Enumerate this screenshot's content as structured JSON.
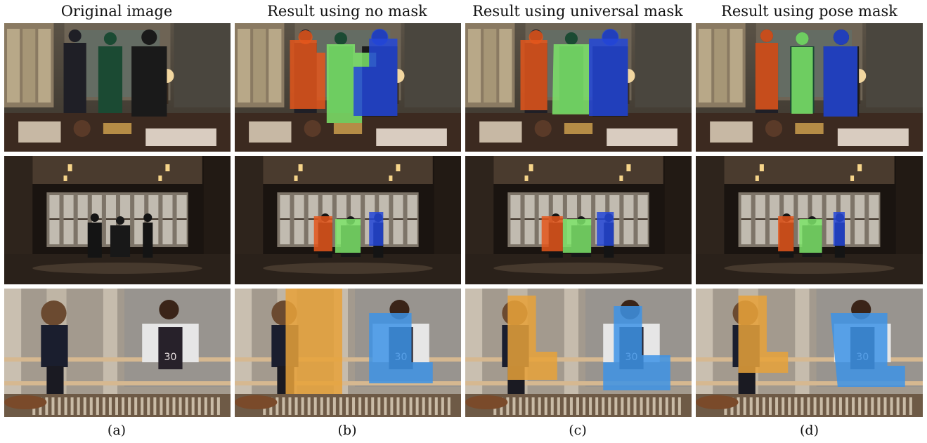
{
  "figure": {
    "columns": [
      {
        "title": "Original image",
        "label": "(a)",
        "mask": "none"
      },
      {
        "title": "Result using no mask",
        "label": "(b)",
        "mask": "box"
      },
      {
        "title": "Result using universal mask",
        "label": "(c)",
        "mask": "universal"
      },
      {
        "title": "Result using pose mask",
        "label": "(d)",
        "mask": "pose"
      }
    ],
    "rows": [
      {
        "scene": "office-three-people",
        "jersey_number": ""
      },
      {
        "scene": "hall-three-people",
        "jersey_number": ""
      },
      {
        "scene": "railing-two-people",
        "jersey_number": "30"
      }
    ],
    "mask_colors": {
      "orange_red": "#e4561b",
      "green": "#7ce46a",
      "blue": "#2346d8",
      "amber": "#e7a23a",
      "sky_blue": "#3d93e6"
    }
  }
}
